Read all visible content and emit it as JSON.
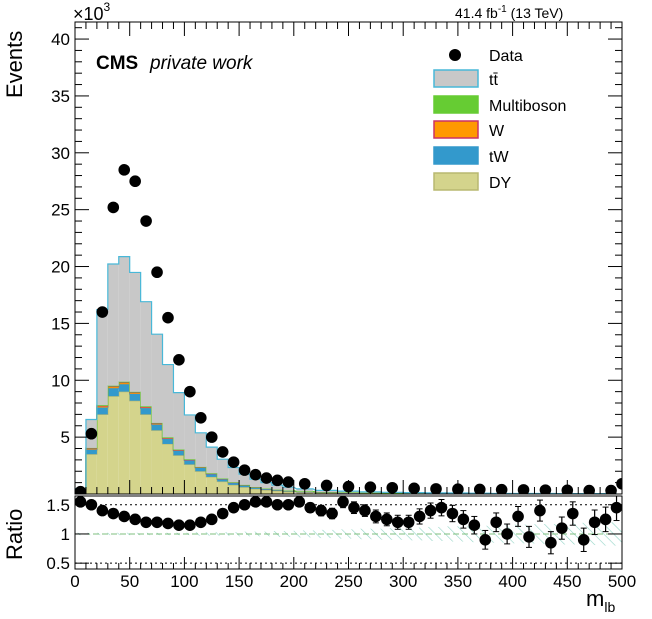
{
  "header": {
    "cms": "CMS",
    "private_work": "private work",
    "lumi_main": "41.4 fb",
    "lumi_sup": "-1",
    "lumi_energy": " (13 TeV)",
    "scale_base": "×10",
    "scale_exp": "3"
  },
  "axes": {
    "y_title": "Events",
    "ratio_title": "Ratio",
    "x_title_main": "m",
    "x_title_sub": "lb"
  },
  "legend": [
    {
      "label": "Data",
      "kind": "marker",
      "color": "#000000"
    },
    {
      "label": "tt̄",
      "kind": "box",
      "fill": "#c8c8c8",
      "edge": "#48b8d8"
    },
    {
      "label": "Multiboson",
      "kind": "box",
      "fill": "#66cc33",
      "edge": "#66cc33"
    },
    {
      "label": "W",
      "kind": "box",
      "fill": "#ff9900",
      "edge": "#cc3366"
    },
    {
      "label": "tW",
      "kind": "box",
      "fill": "#3399cc",
      "edge": "#3399cc"
    },
    {
      "label": "DY",
      "kind": "box",
      "fill": "#d4d48c",
      "edge": "#b8b870"
    }
  ],
  "chart_data": [
    {
      "type": "bar",
      "subtype": "stacked-histogram-with-data-points",
      "xlim": [
        0,
        500
      ],
      "ylim": [
        0,
        41.5
      ],
      "y_unit_multiplier": 1000,
      "x_ticks": [
        0,
        50,
        100,
        150,
        200,
        250,
        300,
        350,
        400,
        450,
        500
      ],
      "x_tick_labels": [
        "0",
        "50",
        "100",
        "150",
        "200",
        "250",
        "300",
        "350",
        "400",
        "450",
        "500"
      ],
      "y_ticks": [
        5,
        10,
        15,
        20,
        25,
        30,
        35,
        40
      ],
      "y_tick_labels": [
        "5",
        "10",
        "15",
        "20",
        "25",
        "30",
        "35",
        "40"
      ],
      "data_points": {
        "x": [
          5,
          15,
          25,
          35,
          45,
          55,
          65,
          75,
          85,
          95,
          105,
          115,
          125,
          135,
          145,
          155,
          165,
          175,
          185,
          195,
          210,
          230,
          250,
          270,
          290,
          310,
          330,
          350,
          370,
          390,
          410,
          430,
          450,
          470,
          490,
          500
        ],
        "y": [
          0.2,
          5.3,
          16.0,
          25.2,
          28.5,
          27.5,
          24.0,
          19.5,
          15.5,
          11.8,
          9.0,
          6.7,
          5.0,
          3.7,
          2.8,
          2.1,
          1.7,
          1.4,
          1.2,
          1.05,
          0.9,
          0.75,
          0.65,
          0.6,
          0.55,
          0.5,
          0.45,
          0.42,
          0.4,
          0.38,
          0.36,
          0.34,
          0.32,
          0.3,
          0.3,
          0.9
        ]
      },
      "stack_x": [
        5,
        15,
        25,
        35,
        45,
        55,
        65,
        75,
        85,
        95,
        105,
        115,
        125,
        135,
        145,
        155,
        165,
        175,
        185,
        195,
        210,
        230,
        250,
        270,
        290,
        310,
        330,
        350,
        370,
        390,
        410,
        430,
        450,
        470,
        490
      ],
      "stack_series": [
        {
          "name": "DY",
          "values": [
            0.3,
            3.5,
            7.0,
            8.6,
            9.0,
            8.2,
            7.0,
            5.6,
            4.4,
            3.4,
            2.6,
            2.0,
            1.5,
            1.1,
            0.8,
            0.6,
            0.45,
            0.35,
            0.27,
            0.2,
            0.15,
            0.1,
            0.08,
            0.06,
            0.05,
            0.04,
            0.03,
            0.03,
            0.02,
            0.02,
            0.02,
            0.02,
            0.01,
            0.01,
            0.01
          ]
        },
        {
          "name": "tW",
          "values": [
            0.05,
            0.4,
            0.6,
            0.7,
            0.65,
            0.6,
            0.55,
            0.5,
            0.45,
            0.4,
            0.35,
            0.3,
            0.25,
            0.2,
            0.18,
            0.15,
            0.12,
            0.1,
            0.08,
            0.07,
            0.06,
            0.05,
            0.04,
            0.03,
            0.03,
            0.02,
            0.02,
            0.02,
            0.02,
            0.01,
            0.01,
            0.01,
            0.01,
            0.01,
            0.01
          ]
        },
        {
          "name": "W",
          "values": [
            0.02,
            0.1,
            0.15,
            0.15,
            0.15,
            0.12,
            0.1,
            0.1,
            0.08,
            0.07,
            0.06,
            0.05,
            0.04,
            0.04,
            0.03,
            0.03,
            0.02,
            0.02,
            0.02,
            0.02,
            0.01,
            0.01,
            0.01,
            0.01,
            0.01,
            0.01,
            0.01,
            0.01,
            0.0,
            0.0,
            0.0,
            0.0,
            0.0,
            0.0,
            0.0
          ]
        },
        {
          "name": "Multiboson",
          "values": [
            0.02,
            0.05,
            0.06,
            0.07,
            0.07,
            0.06,
            0.06,
            0.05,
            0.05,
            0.04,
            0.04,
            0.03,
            0.03,
            0.02,
            0.02,
            0.02,
            0.02,
            0.01,
            0.01,
            0.01,
            0.01,
            0.01,
            0.01,
            0.01,
            0.0,
            0.0,
            0.0,
            0.0,
            0.0,
            0.0,
            0.0,
            0.0,
            0.0,
            0.0,
            0.0
          ]
        },
        {
          "name": "tt̄",
          "values": [
            0.1,
            2.5,
            8.4,
            10.7,
            11.0,
            10.5,
            9.2,
            7.8,
            6.4,
            5.0,
            3.9,
            3.0,
            2.3,
            1.7,
            1.3,
            0.95,
            0.7,
            0.52,
            0.4,
            0.3,
            0.22,
            0.15,
            0.11,
            0.08,
            0.06,
            0.05,
            0.04,
            0.03,
            0.03,
            0.02,
            0.02,
            0.02,
            0.02,
            0.01,
            0.01
          ]
        }
      ]
    },
    {
      "type": "scatter",
      "panel": "ratio",
      "xlim": [
        0,
        500
      ],
      "ylim": [
        0.4,
        1.65
      ],
      "y_ticks": [
        0.5,
        1,
        1.5
      ],
      "y_tick_labels": [
        "0.5",
        "1",
        "1.5"
      ],
      "reference_lines": [
        0.5,
        1,
        1.5
      ],
      "x": [
        5,
        15,
        25,
        35,
        45,
        55,
        65,
        75,
        85,
        95,
        105,
        115,
        125,
        135,
        145,
        155,
        165,
        175,
        185,
        195,
        205,
        215,
        225,
        235,
        245,
        255,
        265,
        275,
        285,
        295,
        305,
        315,
        325,
        335,
        345,
        355,
        365,
        375,
        385,
        395,
        405,
        415,
        425,
        435,
        445,
        455,
        465,
        475,
        485,
        495
      ],
      "y": [
        1.55,
        1.5,
        1.4,
        1.35,
        1.3,
        1.25,
        1.2,
        1.2,
        1.18,
        1.15,
        1.15,
        1.2,
        1.25,
        1.35,
        1.45,
        1.5,
        1.55,
        1.55,
        1.5,
        1.5,
        1.55,
        1.45,
        1.4,
        1.35,
        1.55,
        1.45,
        1.4,
        1.3,
        1.25,
        1.2,
        1.2,
        1.3,
        1.4,
        1.45,
        1.35,
        1.25,
        1.15,
        0.9,
        1.2,
        1.0,
        1.3,
        0.95,
        1.4,
        0.85,
        1.1,
        1.35,
        0.9,
        1.2,
        1.25,
        1.45
      ],
      "err": [
        0.02,
        0.02,
        0.02,
        0.02,
        0.02,
        0.02,
        0.02,
        0.02,
        0.02,
        0.02,
        0.03,
        0.03,
        0.03,
        0.04,
        0.05,
        0.05,
        0.06,
        0.06,
        0.07,
        0.07,
        0.08,
        0.08,
        0.09,
        0.09,
        0.1,
        0.1,
        0.1,
        0.11,
        0.11,
        0.12,
        0.12,
        0.13,
        0.13,
        0.14,
        0.14,
        0.15,
        0.15,
        0.16,
        0.16,
        0.17,
        0.17,
        0.18,
        0.18,
        0.19,
        0.19,
        0.2,
        0.2,
        0.21,
        0.21,
        0.22
      ],
      "uncertainty_band_halfwidth": [
        0.02,
        0.02,
        0.02,
        0.02,
        0.02,
        0.02,
        0.02,
        0.02,
        0.02,
        0.02,
        0.02,
        0.03,
        0.03,
        0.03,
        0.03,
        0.04,
        0.04,
        0.04,
        0.05,
        0.05,
        0.06,
        0.06,
        0.07,
        0.07,
        0.08,
        0.08,
        0.09,
        0.09,
        0.1,
        0.1,
        0.11,
        0.11,
        0.12,
        0.12,
        0.13,
        0.13,
        0.14,
        0.14,
        0.15,
        0.15,
        0.16,
        0.16,
        0.17,
        0.17,
        0.18,
        0.18,
        0.19,
        0.19,
        0.2,
        0.2
      ]
    }
  ]
}
